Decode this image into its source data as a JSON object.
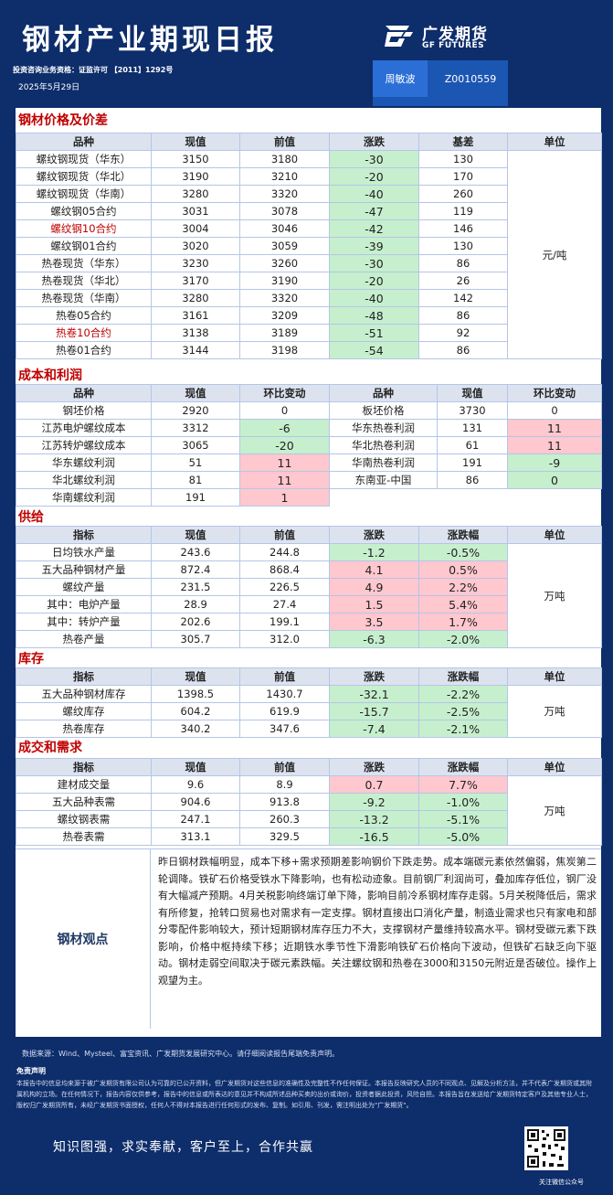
{
  "header": {
    "title": "钢材产业期现日报",
    "license": "投资咨询业务资格：证监许可 【2011】1292号",
    "date": "2025年5月29日",
    "logo_cn": "广发期货",
    "logo_en": "GF FUTURES",
    "analyst_name": "周敏波",
    "analyst_code": "Z0010559"
  },
  "colors": {
    "background": "#0d2d6b",
    "accent_red": "#c00000",
    "up": "#ffc7ce",
    "down": "#c6efce",
    "header_cell": "#dce3ef"
  },
  "price": {
    "title": "钢材价格及价差",
    "headers": [
      "品种",
      "现值",
      "前值",
      "涨跌",
      "基差",
      "单位"
    ],
    "unit": "元/吨",
    "rows": [
      {
        "name": "螺纹钢现货（华东）",
        "cur": "3150",
        "prev": "3180",
        "chg": "-30",
        "basis": "130",
        "hl": false
      },
      {
        "name": "螺纹钢现货（华北）",
        "cur": "3190",
        "prev": "3210",
        "chg": "-20",
        "basis": "170",
        "hl": false
      },
      {
        "name": "螺纹钢现货（华南）",
        "cur": "3280",
        "prev": "3320",
        "chg": "-40",
        "basis": "260",
        "hl": false
      },
      {
        "name": "螺纹钢05合约",
        "cur": "3031",
        "prev": "3078",
        "chg": "-47",
        "basis": "119",
        "hl": false
      },
      {
        "name": "螺纹钢10合约",
        "cur": "3004",
        "prev": "3046",
        "chg": "-42",
        "basis": "146",
        "hl": true
      },
      {
        "name": "螺纹钢01合约",
        "cur": "3020",
        "prev": "3059",
        "chg": "-39",
        "basis": "130",
        "hl": false
      },
      {
        "name": "热卷现货（华东）",
        "cur": "3230",
        "prev": "3260",
        "chg": "-30",
        "basis": "86",
        "hl": false
      },
      {
        "name": "热卷现货（华北）",
        "cur": "3170",
        "prev": "3190",
        "chg": "-20",
        "basis": "26",
        "hl": false
      },
      {
        "name": "热卷现货（华南）",
        "cur": "3280",
        "prev": "3320",
        "chg": "-40",
        "basis": "142",
        "hl": false
      },
      {
        "name": "热卷05合约",
        "cur": "3161",
        "prev": "3209",
        "chg": "-48",
        "basis": "86",
        "hl": false
      },
      {
        "name": "热卷10合约",
        "cur": "3138",
        "prev": "3189",
        "chg": "-51",
        "basis": "92",
        "hl": true
      },
      {
        "name": "热卷01合约",
        "cur": "3144",
        "prev": "3198",
        "chg": "-54",
        "basis": "86",
        "hl": false
      }
    ]
  },
  "cost": {
    "title": "成本和利润",
    "headers": [
      "品种",
      "现值",
      "环比变动",
      "品种",
      "现值",
      "环比变动"
    ],
    "rows": [
      {
        "a_name": "钢坯价格",
        "a_cur": "2920",
        "a_chg": "0",
        "a_color": "",
        "b_name": "板坯价格",
        "b_cur": "3730",
        "b_chg": "0",
        "b_color": ""
      },
      {
        "a_name": "江苏电炉螺纹成本",
        "a_cur": "3312",
        "a_chg": "-6",
        "a_color": "green",
        "b_name": "华东热卷利润",
        "b_cur": "131",
        "b_chg": "11",
        "b_color": "pink"
      },
      {
        "a_name": "江苏转炉螺纹成本",
        "a_cur": "3065",
        "a_chg": "-20",
        "a_color": "green",
        "b_name": "华北热卷利润",
        "b_cur": "61",
        "b_chg": "11",
        "b_color": "pink"
      },
      {
        "a_name": "华东螺纹利润",
        "a_cur": "51",
        "a_chg": "11",
        "a_color": "pink",
        "b_name": "华南热卷利润",
        "b_cur": "191",
        "b_chg": "-9",
        "b_color": "green"
      },
      {
        "a_name": "华北螺纹利润",
        "a_cur": "81",
        "a_chg": "11",
        "a_color": "pink",
        "b_name": "东南亚-中国",
        "b_cur": "86",
        "b_chg": "0",
        "b_color": "green"
      },
      {
        "a_name": "华南螺纹利润",
        "a_cur": "191",
        "a_chg": "1",
        "a_color": "pink",
        "b_name": "",
        "b_cur": "",
        "b_chg": "",
        "b_color": "none"
      }
    ]
  },
  "supply": {
    "title": "供给",
    "headers": [
      "指标",
      "现值",
      "前值",
      "涨跌",
      "涨跌幅",
      "单位"
    ],
    "unit": "万吨",
    "rows": [
      {
        "name": "日均铁水产量",
        "cur": "243.6",
        "prev": "244.8",
        "chg": "-1.2",
        "pct": "-0.5%",
        "c": "green"
      },
      {
        "name": "五大品种钢材产量",
        "cur": "872.4",
        "prev": "868.4",
        "chg": "4.1",
        "pct": "0.5%",
        "c": "pink"
      },
      {
        "name": "螺纹产量",
        "cur": "231.5",
        "prev": "226.5",
        "chg": "4.9",
        "pct": "2.2%",
        "c": "pink"
      },
      {
        "name": "其中：电炉产量",
        "cur": "28.9",
        "prev": "27.4",
        "chg": "1.5",
        "pct": "5.4%",
        "c": "pink"
      },
      {
        "name": "其中：转炉产量",
        "cur": "202.6",
        "prev": "199.1",
        "chg": "3.5",
        "pct": "1.7%",
        "c": "pink"
      },
      {
        "name": "热卷产量",
        "cur": "305.7",
        "prev": "312.0",
        "chg": "-6.3",
        "pct": "-2.0%",
        "c": "green"
      }
    ]
  },
  "inventory": {
    "title": "库存",
    "headers": [
      "指标",
      "现值",
      "前值",
      "涨跌",
      "涨跌幅",
      "单位"
    ],
    "unit": "万吨",
    "rows": [
      {
        "name": "五大品种钢材库存",
        "cur": "1398.5",
        "prev": "1430.7",
        "chg": "-32.1",
        "pct": "-2.2%",
        "c": "green"
      },
      {
        "name": "螺纹库存",
        "cur": "604.2",
        "prev": "619.9",
        "chg": "-15.7",
        "pct": "-2.5%",
        "c": "green"
      },
      {
        "name": "热卷库存",
        "cur": "340.2",
        "prev": "347.6",
        "chg": "-7.4",
        "pct": "-2.1%",
        "c": "green"
      }
    ]
  },
  "demand": {
    "title": "成交和需求",
    "headers": [
      "指标",
      "现值",
      "前值",
      "涨跌",
      "涨跌幅",
      "单位"
    ],
    "unit": "万吨",
    "rows": [
      {
        "name": "建材成交量",
        "cur": "9.6",
        "prev": "8.9",
        "chg": "0.7",
        "pct": "7.7%",
        "c": "pink"
      },
      {
        "name": "五大品种表需",
        "cur": "904.6",
        "prev": "913.8",
        "chg": "-9.2",
        "pct": "-1.0%",
        "c": "green"
      },
      {
        "name": "螺纹钢表需",
        "cur": "247.1",
        "prev": "260.3",
        "chg": "-13.2",
        "pct": "-5.1%",
        "c": "green"
      },
      {
        "name": "热卷表需",
        "cur": "313.1",
        "prev": "329.5",
        "chg": "-16.5",
        "pct": "-5.0%",
        "c": "green"
      }
    ]
  },
  "view": {
    "label": "钢材观点",
    "text": "昨日钢材跌幅明显，成本下移+需求预期差影响钢价下跌走势。成本端碳元素依然偏弱，焦炭第二轮调降。铁矿石价格受铁水下降影响，也有松动迹象。目前钢厂利润尚可，叠加库存低位，钢厂没有大幅减产预期。4月关税影响终端订单下降，影响目前冷系钢材库存走弱。5月关税降低后，需求有所修复，抢转口贸易也对需求有一定支撑。钢材直接出口消化产量，制造业需求也只有家电和部分零配件影响较大，预计短期钢材库存压力不大，支撑钢材产量维持较高水平。钢材受碳元素下跌影响，价格中枢持续下移；近期铁水季节性下滑影响铁矿石价格向下波动，但铁矿石缺乏向下驱动。钢材走弱空间取决于碳元素跌幅。关注螺纹钢和热卷在3000和3150元附近是否破位。操作上观望为主。"
  },
  "footer": {
    "source": "数据来源：Wind、Mysteel、富宝资讯、广发期货发展研究中心。请仔细阅读报告尾端免责声明。",
    "disclaimer_title": "免责声明",
    "disclaimer": "本报告中的信息均来源于被广发期货有限公司认为可靠的已公开资料，但广发期货对这些信息的准确性及完整性不作任何保证。本报告反映研究人员的不同观点、见解及分析方法，并不代表广发期货或其附属机构的立场。在任何情况下，报告内容仅供参考，报告中的信息或所表达的意见并不构成所述品种买卖的出价或询价，投资者据此投资，风险自担。本报告旨在发送给广发期货特定客户及其他专业人士，版权归广发期货所有，未经广发期货书面授权，任何人不得对本报告进行任何形式的发布、复制。如引用、刊发，需注明出处为\"广发期货\"。",
    "slogan": "知识图强，求实奉献，客户至上，合作共赢",
    "qr_caption": "关注微信公众号"
  }
}
